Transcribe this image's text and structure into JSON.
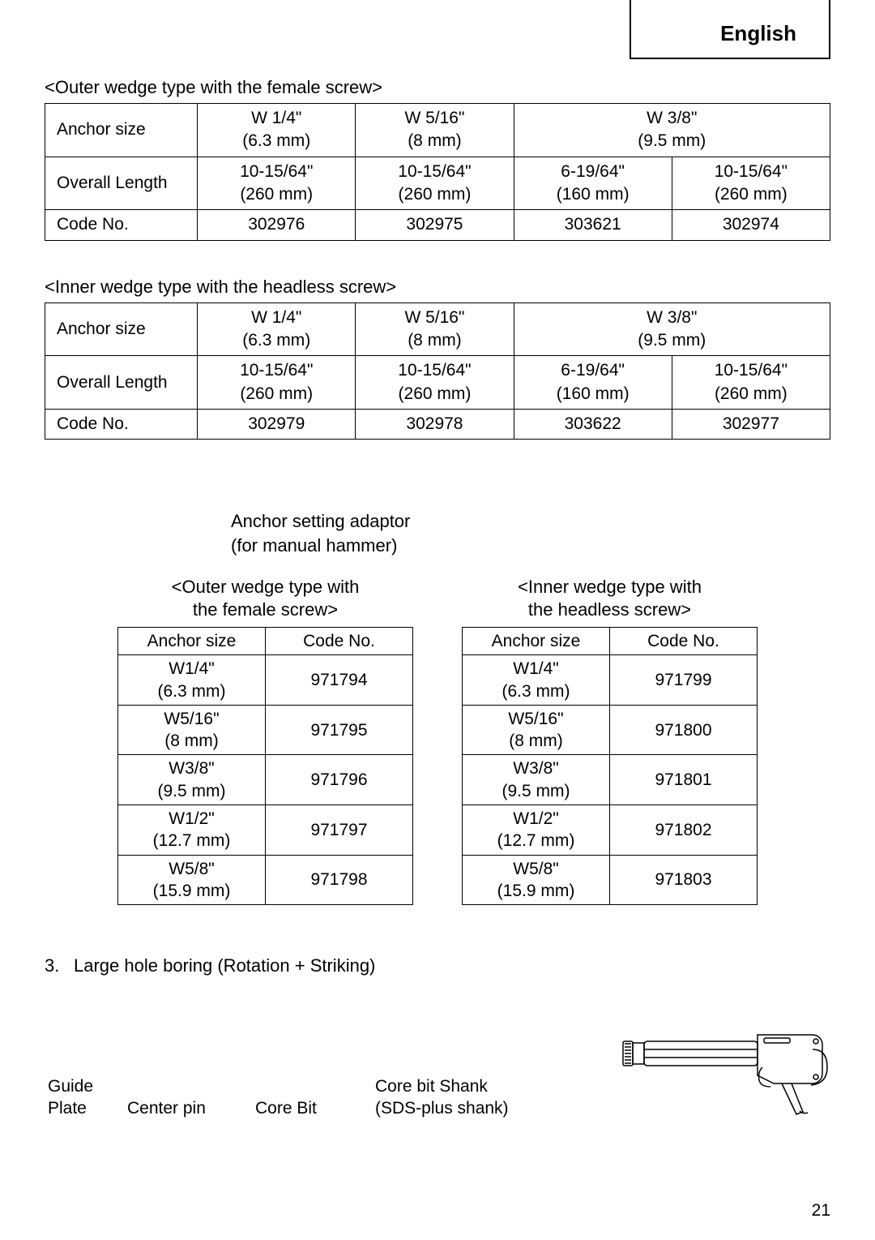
{
  "lang": "English",
  "page_number": "21",
  "table1": {
    "title": "<Outer wedge type with the female screw>",
    "row_labels": [
      "Anchor size",
      "Overall Length",
      "Code No."
    ],
    "anchor": [
      "W 1/4\"\n(6.3 mm)",
      "W 5/16\"\n(8 mm)",
      "W 3/8\"\n(9.5 mm)"
    ],
    "anchor_span": [
      1,
      1,
      2
    ],
    "length": [
      "10-15/64\"\n(260 mm)",
      "10-15/64\"\n(260 mm)",
      "6-19/64\"\n(160 mm)",
      "10-15/64\"\n(260 mm)"
    ],
    "code": [
      "302976",
      "302975",
      "303621",
      "302974"
    ]
  },
  "table2": {
    "title": "<Inner wedge type with the headless screw>",
    "row_labels": [
      "Anchor size",
      "Overall Length",
      "Code No."
    ],
    "anchor": [
      "W 1/4\"\n(6.3 mm)",
      "W 5/16\"\n(8 mm)",
      "W 3/8\"\n(9.5 mm)"
    ],
    "anchor_span": [
      1,
      1,
      2
    ],
    "length": [
      "10-15/64\"\n(260 mm)",
      "10-15/64\"\n(260 mm)",
      "6-19/64\"\n(160 mm)",
      "10-15/64\"\n(260 mm)"
    ],
    "code": [
      "302979",
      "302978",
      "303622",
      "302977"
    ]
  },
  "adaptor_caption_l1": "Anchor setting adaptor",
  "adaptor_caption_l2": "(for manual hammer)",
  "small_left": {
    "title": "<Outer wedge type with\nthe female screw>",
    "headers": [
      "Anchor size",
      "Code No."
    ],
    "rows": [
      [
        "W1/4\"\n(6.3 mm)",
        "971794"
      ],
      [
        "W5/16\"\n(8 mm)",
        "971795"
      ],
      [
        "W3/8\"\n(9.5 mm)",
        "971796"
      ],
      [
        "W1/2\"\n(12.7 mm)",
        "971797"
      ],
      [
        "W5/8\"\n(15.9 mm)",
        "971798"
      ]
    ]
  },
  "small_right": {
    "title": "<Inner wedge type with\nthe headless screw>",
    "headers": [
      "Anchor size",
      "Code No."
    ],
    "rows": [
      [
        "W1/4\"\n(6.3 mm)",
        "971799"
      ],
      [
        "W5/16\"\n(8 mm)",
        "971800"
      ],
      [
        "W3/8\"\n(9.5 mm)",
        "971801"
      ],
      [
        "W1/2\"\n(12.7 mm)",
        "971802"
      ],
      [
        "W5/8\"\n(15.9 mm)",
        "971803"
      ]
    ]
  },
  "item3_num": "3.",
  "item3_text": "Large hole boring (Rotation + Striking)",
  "parts": {
    "guide": "Guide Plate",
    "center": "Center pin",
    "core": "Core Bit",
    "shank_l1": "Core bit Shank",
    "shank_l2": "(SDS-plus shank)"
  }
}
